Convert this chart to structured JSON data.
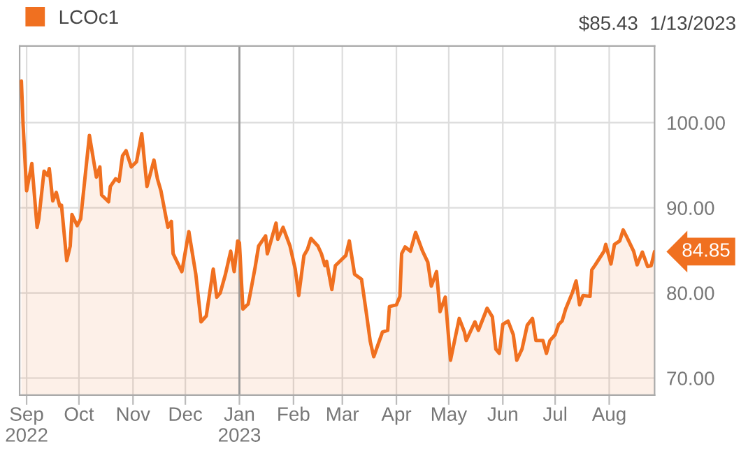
{
  "chart_data": {
    "type": "area",
    "series": [
      {
        "name": "LCOc1",
        "color": "#f07020",
        "x": [
          "2022-08-29",
          "2022-08-30",
          "2022-09-01",
          "2022-09-04",
          "2022-09-07",
          "2022-09-08",
          "2022-09-11",
          "2022-09-13",
          "2022-09-14",
          "2022-09-16",
          "2022-09-18",
          "2022-09-20",
          "2022-09-21",
          "2022-09-24",
          "2022-09-26",
          "2022-09-27",
          "2022-09-30",
          "2022-10-02",
          "2022-10-04",
          "2022-10-07",
          "2022-10-11",
          "2022-10-13",
          "2022-10-14",
          "2022-10-18",
          "2022-10-19",
          "2022-10-22",
          "2022-10-24",
          "2022-10-26",
          "2022-10-28",
          "2022-10-31",
          "2022-11-03",
          "2022-11-06",
          "2022-11-09",
          "2022-11-13",
          "2022-11-15",
          "2022-11-17",
          "2022-11-21",
          "2022-11-23",
          "2022-11-24",
          "2022-11-29",
          "2022-12-03",
          "2022-12-07",
          "2022-12-10",
          "2022-12-13",
          "2022-12-17",
          "2022-12-19",
          "2022-12-21",
          "2022-12-24",
          "2022-12-27",
          "2022-12-29",
          "2022-12-31",
          "2023-01-01",
          "2023-01-03",
          "2023-01-06",
          "2023-01-07",
          "2023-01-10",
          "2023-01-12",
          "2023-01-16",
          "2023-01-17",
          "2023-01-22",
          "2023-01-23",
          "2023-01-26",
          "2023-01-30",
          "2023-02-02",
          "2023-02-04",
          "2023-02-07",
          "2023-02-09",
          "2023-02-11",
          "2023-02-15",
          "2023-02-17",
          "2023-02-19",
          "2023-02-20",
          "2023-02-23",
          "2023-02-25",
          "2023-02-28",
          "2023-03-03",
          "2023-03-05",
          "2023-03-08",
          "2023-03-12",
          "2023-03-15",
          "2023-03-17",
          "2023-03-19",
          "2023-03-24",
          "2023-03-27",
          "2023-03-28",
          "2023-04-01",
          "2023-04-03",
          "2023-04-04",
          "2023-04-06",
          "2023-04-09",
          "2023-04-12",
          "2023-04-16",
          "2023-04-19",
          "2023-04-21",
          "2023-04-24",
          "2023-04-26",
          "2023-04-29",
          "2023-05-02",
          "2023-05-07",
          "2023-05-10",
          "2023-05-11",
          "2023-05-16",
          "2023-05-18",
          "2023-05-23",
          "2023-05-26",
          "2023-05-28",
          "2023-05-30",
          "2023-06-01",
          "2023-06-04",
          "2023-06-07",
          "2023-06-09",
          "2023-06-12",
          "2023-06-15",
          "2023-06-18",
          "2023-06-20",
          "2023-06-24",
          "2023-06-26",
          "2023-06-28",
          "2023-07-01",
          "2023-07-03",
          "2023-07-05",
          "2023-07-07",
          "2023-07-11",
          "2023-07-13",
          "2023-07-15",
          "2023-07-17",
          "2023-07-21",
          "2023-07-22",
          "2023-07-24",
          "2023-07-29",
          "2023-07-30",
          "2023-08-02",
          "2023-08-04",
          "2023-08-07",
          "2023-08-09",
          "2023-08-11",
          "2023-08-15",
          "2023-08-17",
          "2023-08-20",
          "2023-08-23",
          "2023-08-25",
          "2023-08-27"
        ],
        "values": [
          104.9,
          99.7,
          92.0,
          95.2,
          87.7,
          88.7,
          94.3,
          93.8,
          94.6,
          90.8,
          91.8,
          90.2,
          90.3,
          83.8,
          85.5,
          89.2,
          87.9,
          88.7,
          92.6,
          98.5,
          93.6,
          94.8,
          91.5,
          90.7,
          92.5,
          93.4,
          93.1,
          96.1,
          96.7,
          94.8,
          95.4,
          98.7,
          92.5,
          95.6,
          93.4,
          92.0,
          87.7,
          88.4,
          84.6,
          82.5,
          87.2,
          82.2,
          76.6,
          77.3,
          82.8,
          79.5,
          80.0,
          82.2,
          84.9,
          82.5,
          86.1,
          85.9,
          78.1,
          78.7,
          79.7,
          83.0,
          85.5,
          86.7,
          84.6,
          88.2,
          86.3,
          87.7,
          85.5,
          82.8,
          79.7,
          84.4,
          85.1,
          86.4,
          85.5,
          84.6,
          83.2,
          83.7,
          80.4,
          83.2,
          83.8,
          84.4,
          86.1,
          82.2,
          81.6,
          77.3,
          74.3,
          72.5,
          75.4,
          75.6,
          78.4,
          78.6,
          79.6,
          84.6,
          85.4,
          84.9,
          87.1,
          84.9,
          83.6,
          80.8,
          82.5,
          77.8,
          79.5,
          72.1,
          77.0,
          75.4,
          74.4,
          76.6,
          75.6,
          78.2,
          77.2,
          73.4,
          72.9,
          76.3,
          76.7,
          75.1,
          72.1,
          73.4,
          76.2,
          77.0,
          74.4,
          74.4,
          72.9,
          74.4,
          75.1,
          76.3,
          76.7,
          78.1,
          80.1,
          81.4,
          78.6,
          79.7,
          79.6,
          82.7,
          83.3,
          84.9,
          85.7,
          83.4,
          85.7,
          86.1,
          87.4,
          86.6,
          84.9,
          83.3,
          84.8,
          83.1,
          83.2,
          84.85
        ]
      }
    ],
    "xlim": [
      "2022-08-28",
      "2023-08-27"
    ],
    "xticks": [
      {
        "value": "2022-09-01",
        "label": "Sep\n2022"
      },
      {
        "value": "2022-10-01",
        "label": "Oct"
      },
      {
        "value": "2022-11-01",
        "label": "Nov"
      },
      {
        "value": "2022-12-01",
        "label": "Dec"
      },
      {
        "value": "2023-01-01",
        "label": "Jan\n2023"
      },
      {
        "value": "2023-02-01",
        "label": "Feb"
      },
      {
        "value": "2023-03-01",
        "label": "Mar"
      },
      {
        "value": "2023-04-01",
        "label": "Apr"
      },
      {
        "value": "2023-05-01",
        "label": "May"
      },
      {
        "value": "2023-06-01",
        "label": "Jun"
      },
      {
        "value": "2023-07-01",
        "label": "Jul"
      },
      {
        "value": "2023-08-01",
        "label": "Aug"
      }
    ],
    "ylim": [
      68,
      109
    ],
    "yticks": [
      {
        "value": 70,
        "label": "70.00"
      },
      {
        "value": 80,
        "label": "80.00"
      },
      {
        "value": 90,
        "label": "90.00"
      },
      {
        "value": 100,
        "label": "100.00"
      }
    ],
    "ref_lines": [
      {
        "axis": "x",
        "value": "2023-01-01",
        "color": "#999999"
      }
    ],
    "annotations": [
      "$85.43",
      "1/13/2023",
      {
        "text": "84.85",
        "x": "2023-08-27",
        "y": 84.85
      }
    ],
    "grid": true,
    "legend": "top left"
  }
}
